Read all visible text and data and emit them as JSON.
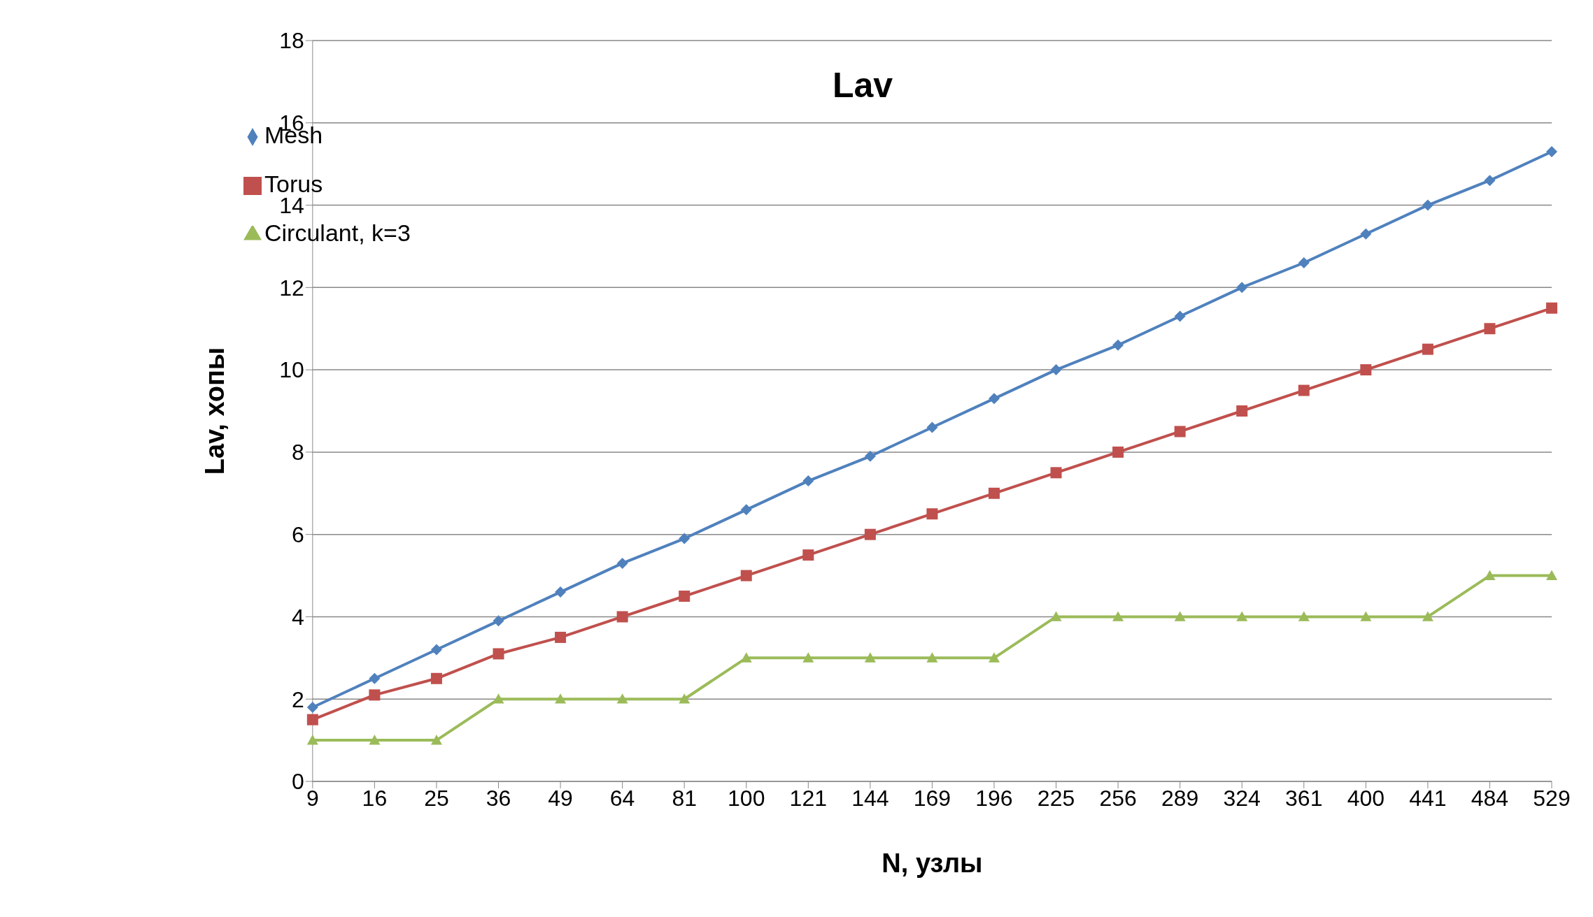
{
  "chart_data": {
    "type": "line",
    "title": "Lav",
    "xlabel": "N, узлы",
    "ylabel": "Lav, хопы",
    "categories": [
      "9",
      "16",
      "25",
      "36",
      "49",
      "64",
      "81",
      "100",
      "121",
      "144",
      "169",
      "196",
      "225",
      "256",
      "289",
      "324",
      "361",
      "400",
      "441",
      "484",
      "529"
    ],
    "series": [
      {
        "name": "Mesh",
        "color": "#4f81bd",
        "marker": "diamond",
        "values": [
          1.8,
          2.5,
          3.2,
          3.9,
          4.6,
          5.3,
          5.9,
          6.6,
          7.3,
          7.9,
          8.6,
          9.3,
          10.0,
          10.6,
          11.3,
          12.0,
          12.6,
          13.3,
          14.0,
          14.6,
          15.3
        ]
      },
      {
        "name": "Torus",
        "color": "#c0504d",
        "marker": "square",
        "values": [
          1.5,
          2.1,
          2.5,
          3.1,
          3.5,
          4.0,
          4.5,
          5.0,
          5.5,
          6.0,
          6.5,
          7.0,
          7.5,
          8.0,
          8.5,
          9.0,
          9.5,
          10.0,
          10.5,
          11.0,
          11.5
        ]
      },
      {
        "name": "Circulant, k=3",
        "color": "#9bbb59",
        "marker": "triangle",
        "values": [
          1,
          1,
          1,
          2,
          2,
          2,
          2,
          3,
          3,
          3,
          3,
          3,
          4,
          4,
          4,
          4,
          4,
          4,
          4,
          5,
          5
        ]
      }
    ],
    "ylim": [
      0,
      18
    ],
    "yticks": [
      0,
      2,
      4,
      6,
      8,
      10,
      12,
      14,
      16,
      18
    ],
    "grid": "y",
    "legend": "top left"
  }
}
